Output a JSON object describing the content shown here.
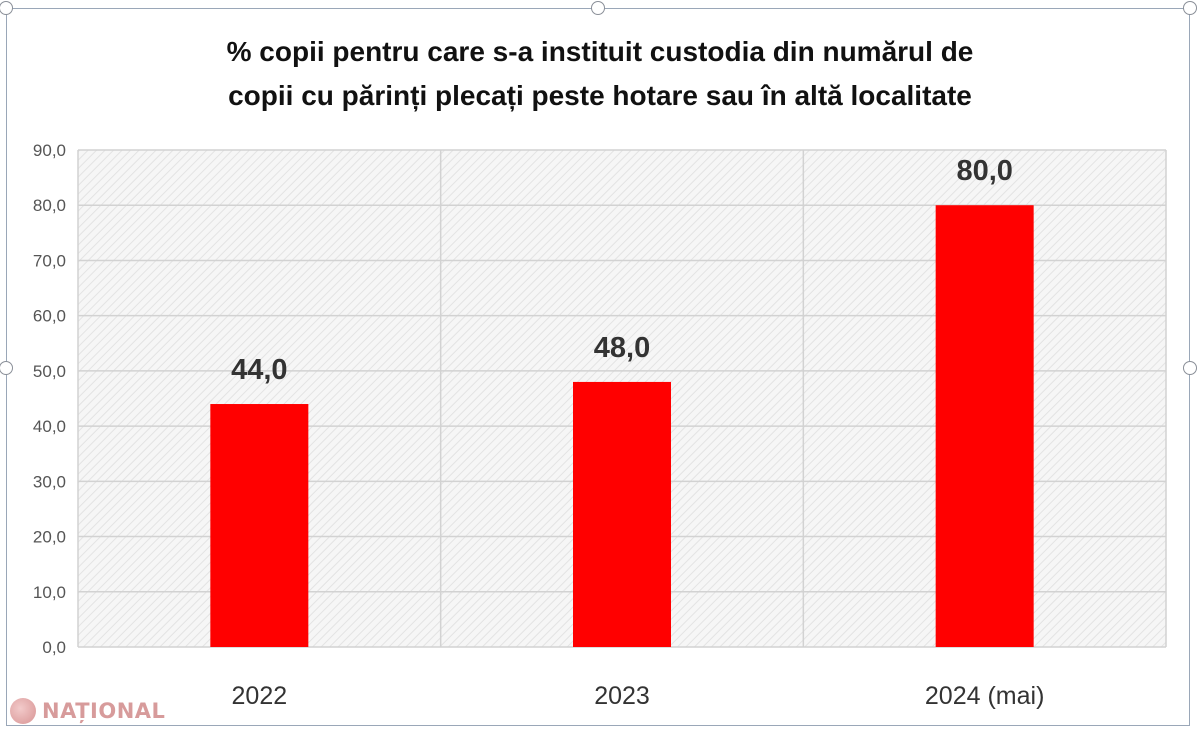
{
  "chart_data": {
    "type": "bar",
    "title_lines": [
      "% copii pentru care s-a instituit custodia din numărul de",
      "copii cu părinți plecați peste hotare sau în altă localitate"
    ],
    "categories": [
      "2022",
      "2023",
      "2024 (mai)"
    ],
    "values": [
      44.0,
      48.0,
      80.0
    ],
    "data_labels": [
      "44,0",
      "48,0",
      "80,0"
    ],
    "y_ticks": [
      "0,0",
      "10,0",
      "20,0",
      "30,0",
      "40,0",
      "50,0",
      "60,0",
      "70,0",
      "80,0",
      "90,0"
    ],
    "ylim": [
      0,
      90
    ],
    "grid": true,
    "bar_color": "#ff0000"
  },
  "watermark": {
    "text": "NAȚIONAL"
  }
}
